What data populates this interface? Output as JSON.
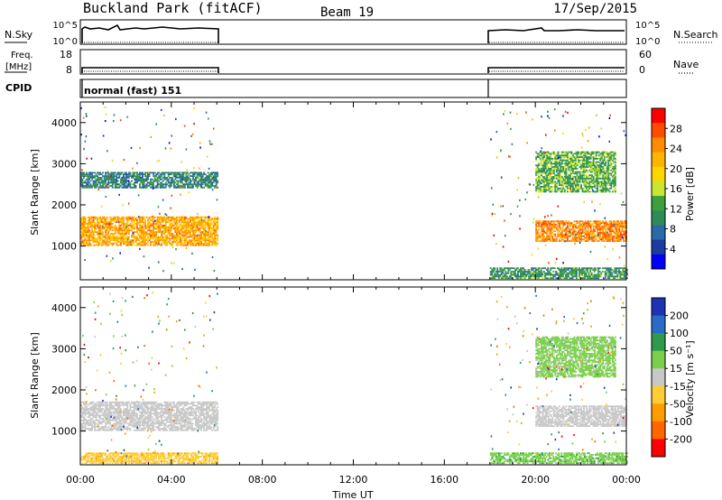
{
  "header": {
    "station": "Buckland Park (fitACF)",
    "beam": "Beam 19",
    "date": "17/Sep/2015"
  },
  "top_panels": {
    "nsky_label": "N.Sky",
    "nsky_ticks": [
      "10^5",
      "10^0"
    ],
    "nsearch_ticks": [
      "10^5",
      "10^0"
    ],
    "nsearch_label": "N.Search",
    "freq_label_1": "Freq.",
    "freq_label_2": "[MHz]",
    "freq_ticks": [
      "18",
      "8"
    ],
    "nave_ticks": [
      "60",
      "0"
    ],
    "nave_label": "Nave",
    "cpid_label": "CPID",
    "cpid_value": "normal (fast) 151"
  },
  "x_axis": {
    "label": "Time UT",
    "ticks": [
      "00:00",
      "04:00",
      "08:00",
      "12:00",
      "16:00",
      "20:00",
      "00:00"
    ]
  },
  "power_panel": {
    "ylabel": "Slant Range [km]",
    "yticks": [
      "4000",
      "3000",
      "2000",
      "1000"
    ],
    "cbar_label": "Power [dB]",
    "cbar_ticks": [
      "28",
      "24",
      "20",
      "16",
      "12",
      "8",
      "4"
    ],
    "cbar_colors": [
      "#ff0000",
      "#ff4a00",
      "#ff8c00",
      "#ffb400",
      "#ffd700",
      "#c8e632",
      "#3ca03c",
      "#2e8b57",
      "#2a6aa8",
      "#1e3ca0",
      "#0000ff"
    ]
  },
  "velocity_panel": {
    "ylabel": "Slant Range [km]",
    "yticks": [
      "4000",
      "3000",
      "2000",
      "1000"
    ],
    "cbar_label": "Velocity [m s⁻¹]",
    "cbar_ticks": [
      "200",
      "100",
      "50",
      "15",
      "-15",
      "-50",
      "-100",
      "-200"
    ],
    "cbar_colors": [
      "#1e32b4",
      "#2a6ac8",
      "#2e9a4e",
      "#7ad04a",
      "#c8c8c8",
      "#ffcc33",
      "#ff9c00",
      "#ff6600",
      "#ff0000"
    ]
  },
  "chart_data": [
    {
      "type": "heatmap",
      "title": "Power [dB]",
      "ylabel": "Slant Range [km]",
      "xlabel": "Time UT",
      "ylim": [
        180,
        4500
      ],
      "xlim_hours": [
        0,
        24
      ],
      "value_range": [
        0,
        30
      ],
      "data_windows_hours": [
        [
          0,
          6
        ],
        [
          18,
          24
        ]
      ],
      "features": [
        {
          "t_hours": [
            0,
            6
          ],
          "range_km": [
            1000,
            1700
          ],
          "level_db": 22
        },
        {
          "t_hours": [
            0,
            6
          ],
          "range_km": [
            2400,
            2800
          ],
          "level_db": 8
        },
        {
          "t_hours": [
            18,
            24
          ],
          "range_km": [
            200,
            450
          ],
          "level_db": 10
        },
        {
          "t_hours": [
            20,
            24
          ],
          "range_km": [
            1100,
            1600
          ],
          "level_db": 24
        },
        {
          "t_hours": [
            20,
            23.5
          ],
          "range_km": [
            2300,
            3300
          ],
          "level_db": 12
        }
      ]
    },
    {
      "type": "heatmap",
      "title": "Velocity [m s⁻¹]",
      "ylabel": "Slant Range [km]",
      "xlabel": "Time UT",
      "ylim": [
        180,
        4500
      ],
      "xlim_hours": [
        0,
        24
      ],
      "value_range": [
        -200,
        200
      ],
      "data_windows_hours": [
        [
          0,
          6
        ],
        [
          18,
          24
        ]
      ],
      "features": [
        {
          "t_hours": [
            0,
            6
          ],
          "range_km": [
            1000,
            1700
          ],
          "velocity": 0
        },
        {
          "t_hours": [
            0,
            6
          ],
          "range_km": [
            200,
            450
          ],
          "velocity": -60
        },
        {
          "t_hours": [
            18,
            24
          ],
          "range_km": [
            200,
            450
          ],
          "velocity": 60
        },
        {
          "t_hours": [
            20,
            24
          ],
          "range_km": [
            1100,
            1600
          ],
          "velocity": 0
        },
        {
          "t_hours": [
            20,
            23.5
          ],
          "range_km": [
            2300,
            3300
          ],
          "velocity": 40
        }
      ]
    }
  ]
}
